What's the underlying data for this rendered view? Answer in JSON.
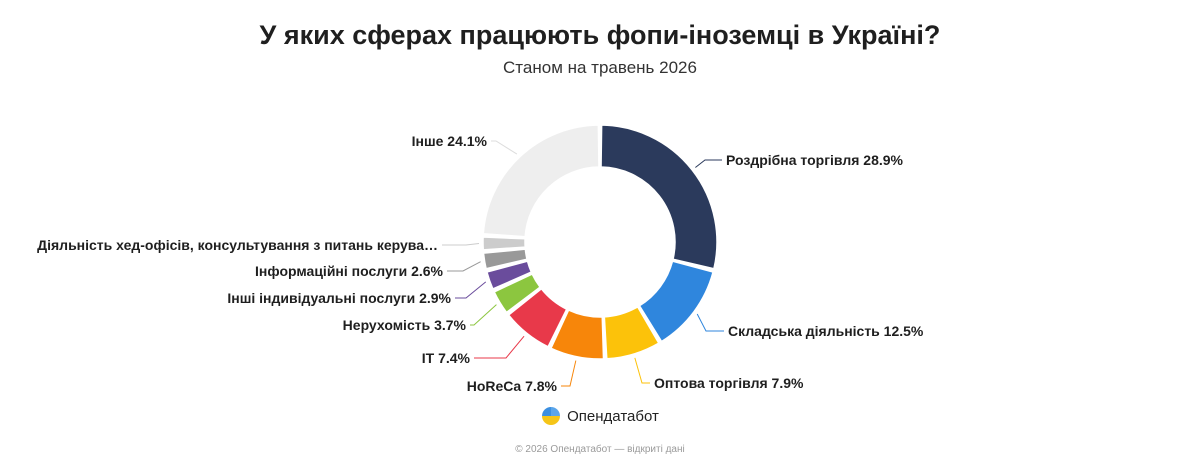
{
  "title": "У яких сферах працюють фопи-іноземці в Україні?",
  "subtitle": "Станом на травень 2026",
  "brand": {
    "name": "Опендатабот",
    "logo_icon": "opendatabot-logo-icon",
    "logo_colors": [
      "#3b8fe0",
      "#f5c518"
    ]
  },
  "footer": "© 2026 Опендатабот — відкриті дані",
  "chart_data": {
    "type": "pie",
    "variant": "donut",
    "unit": "%",
    "slices": [
      {
        "label": "Роздрібна торгівля",
        "value": 28.9,
        "color": "#2b3a5c",
        "display": "Роздрібна торгівля 28.9%"
      },
      {
        "label": "Складська діяльність",
        "value": 12.5,
        "color": "#2f86dd",
        "display": "Складська діяльність 12.5%"
      },
      {
        "label": "Оптова торгівля",
        "value": 7.9,
        "color": "#fcc20a",
        "display": "Оптова торгівля 7.9%"
      },
      {
        "label": "HoReCa",
        "value": 7.8,
        "color": "#f7860a",
        "display": "HoReCa 7.8%"
      },
      {
        "label": "IT",
        "value": 7.4,
        "color": "#e8394a",
        "display": "IT 7.4%"
      },
      {
        "label": "Нерухомість",
        "value": 3.7,
        "color": "#8cc63f",
        "display": "Нерухомість 3.7%"
      },
      {
        "label": "Інші індивідуальні послуги",
        "value": 2.9,
        "color": "#6a4c9c",
        "display": "Інші індивідуальні послуги 2.9%"
      },
      {
        "label": "Інформаційні послуги",
        "value": 2.6,
        "color": "#999999",
        "display": "Інформаційні послуги 2.6%"
      },
      {
        "label": "Діяльність хед-офісів, консультування з питань керува…",
        "value": 2.2,
        "color": "#cccccc",
        "display": "Діяльність хед-офісів, консультування з питань керува…"
      },
      {
        "label": "Інше",
        "value": 24.1,
        "color": "#eeeeee",
        "display": "Інше 24.1%"
      }
    ]
  }
}
